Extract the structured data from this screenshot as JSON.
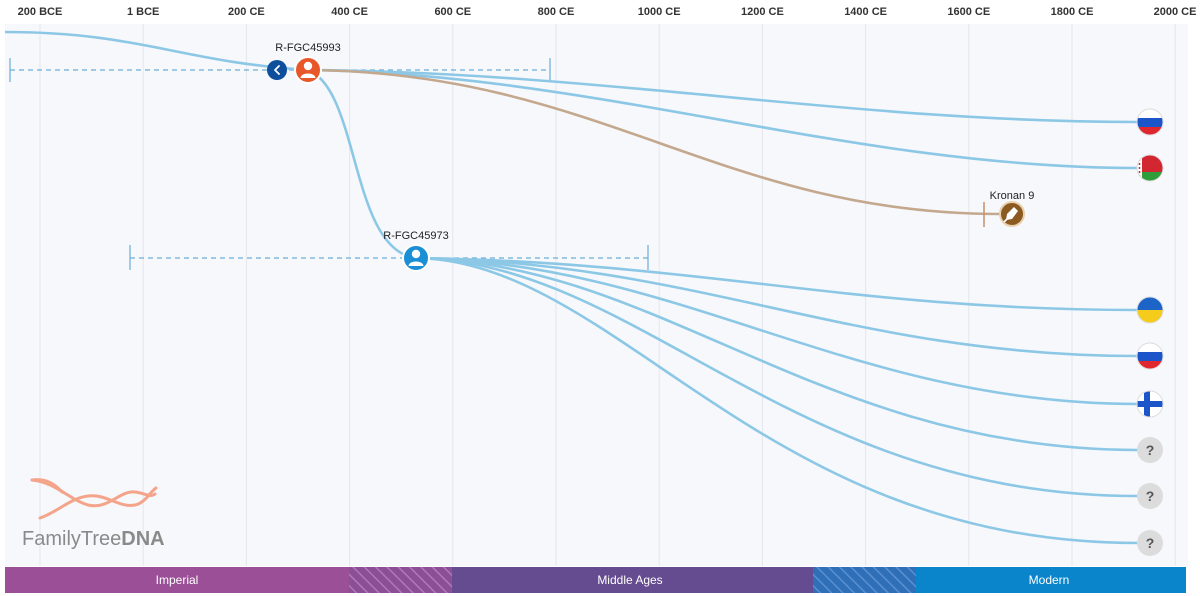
{
  "axis": {
    "ticks": [
      "200 BCE",
      "1 BCE",
      "200 CE",
      "400 CE",
      "600 CE",
      "800 CE",
      "1000 CE",
      "1200 CE",
      "1400 CE",
      "1600 CE",
      "1800 CE",
      "2000 CE"
    ]
  },
  "nodes": [
    {
      "id": "upper",
      "label": "R-FGC45993",
      "color": "#e8572a"
    },
    {
      "id": "lower",
      "label": "R-FGC45973",
      "color": "#1a8fd6"
    },
    {
      "id": "ancient",
      "label": "Kronan 9",
      "color": "#8a5a20"
    }
  ],
  "leaves": [
    {
      "kind": "flag",
      "icon": "russia-flag-icon"
    },
    {
      "kind": "flag",
      "icon": "belarus-flag-icon"
    },
    {
      "kind": "flag",
      "icon": "ukraine-flag-icon"
    },
    {
      "kind": "flag",
      "icon": "russia-flag-icon"
    },
    {
      "kind": "flag",
      "icon": "finland-flag-icon"
    },
    {
      "kind": "unknown",
      "icon": "unknown-country-icon",
      "text": "?"
    },
    {
      "kind": "unknown",
      "icon": "unknown-country-icon",
      "text": "?"
    },
    {
      "kind": "unknown",
      "icon": "unknown-country-icon",
      "text": "?"
    }
  ],
  "eras": [
    {
      "label": "Imperial",
      "color": "#9b4f96"
    },
    {
      "label": "",
      "color": "#7a4f94"
    },
    {
      "label": "Middle Ages",
      "color": "#654b8f"
    },
    {
      "label": "",
      "color": "#3a6fb0"
    },
    {
      "label": "Modern",
      "color": "#0a85cc"
    }
  ],
  "logo": {
    "text_light": "FamilyTree",
    "text_bold": "DNA"
  },
  "colors": {
    "branch": "#8cc8e6",
    "ancient_branch": "#c4a88e",
    "grid": "#e4e6ee",
    "background": "#f7f8fc"
  }
}
